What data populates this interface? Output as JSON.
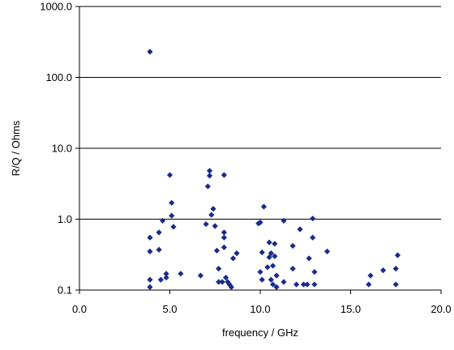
{
  "chart_data": {
    "type": "scatter",
    "title": "",
    "xlabel": "frequency / GHz",
    "ylabel": "R/Q / Ohms",
    "xlim": [
      0,
      20
    ],
    "ylim": [
      0.1,
      1000
    ],
    "yscale": "log",
    "grid": "horizontal major gridlines",
    "legend": "none",
    "marker": "diamond",
    "marker_color": "#1a2a8c",
    "x_ticks": [
      "0.0",
      "5.0",
      "10.0",
      "15.0",
      "20.0"
    ],
    "y_ticks": [
      "0.1",
      "1.0",
      "10.0",
      "100.0",
      "1000.0"
    ],
    "series": [
      {
        "points": [
          [
            3.9,
            230
          ],
          [
            3.9,
            0.55
          ],
          [
            3.9,
            0.35
          ],
          [
            3.9,
            0.14
          ],
          [
            3.9,
            0.11
          ],
          [
            4.4,
            0.65
          ],
          [
            4.4,
            0.37
          ],
          [
            4.5,
            0.14
          ],
          [
            4.6,
            0.95
          ],
          [
            4.8,
            0.17
          ],
          [
            4.8,
            0.15
          ],
          [
            5.0,
            4.2
          ],
          [
            5.1,
            1.7
          ],
          [
            5.1,
            1.12
          ],
          [
            5.2,
            0.78
          ],
          [
            5.6,
            0.17
          ],
          [
            6.7,
            0.16
          ],
          [
            7.0,
            0.85
          ],
          [
            7.1,
            2.9
          ],
          [
            7.2,
            4.8
          ],
          [
            7.2,
            4.1
          ],
          [
            7.3,
            1.15
          ],
          [
            7.4,
            1.4
          ],
          [
            7.5,
            0.8
          ],
          [
            7.6,
            0.36
          ],
          [
            7.7,
            0.2
          ],
          [
            7.7,
            0.13
          ],
          [
            7.9,
            0.13
          ],
          [
            8.0,
            4.2
          ],
          [
            8.0,
            0.65
          ],
          [
            8.0,
            0.55
          ],
          [
            8.0,
            0.4
          ],
          [
            8.1,
            0.15
          ],
          [
            8.2,
            0.13
          ],
          [
            8.3,
            0.12
          ],
          [
            8.4,
            0.11
          ],
          [
            8.5,
            0.28
          ],
          [
            8.7,
            0.33
          ],
          [
            9.9,
            0.87
          ],
          [
            10.0,
            0.9
          ],
          [
            10.0,
            0.18
          ],
          [
            10.1,
            0.34
          ],
          [
            10.1,
            0.14
          ],
          [
            10.2,
            1.5
          ],
          [
            10.4,
            0.21
          ],
          [
            10.5,
            0.47
          ],
          [
            10.5,
            0.29
          ],
          [
            10.6,
            0.14
          ],
          [
            10.6,
            0.33
          ],
          [
            10.7,
            0.22
          ],
          [
            10.7,
            0.12
          ],
          [
            10.8,
            0.3
          ],
          [
            10.8,
            0.45
          ],
          [
            10.9,
            0.16
          ],
          [
            10.9,
            0.11
          ],
          [
            11.3,
            0.95
          ],
          [
            11.3,
            0.13
          ],
          [
            11.8,
            0.42
          ],
          [
            11.8,
            0.2
          ],
          [
            12.0,
            0.12
          ],
          [
            12.2,
            0.72
          ],
          [
            12.4,
            0.12
          ],
          [
            12.6,
            0.12
          ],
          [
            12.7,
            0.28
          ],
          [
            12.9,
            1.02
          ],
          [
            12.9,
            0.55
          ],
          [
            13.0,
            0.18
          ],
          [
            13.0,
            0.12
          ],
          [
            13.7,
            0.35
          ],
          [
            16.0,
            0.12
          ],
          [
            16.1,
            0.16
          ],
          [
            16.8,
            0.19
          ],
          [
            17.5,
            0.12
          ],
          [
            17.5,
            0.2
          ],
          [
            17.6,
            0.31
          ]
        ]
      }
    ]
  }
}
